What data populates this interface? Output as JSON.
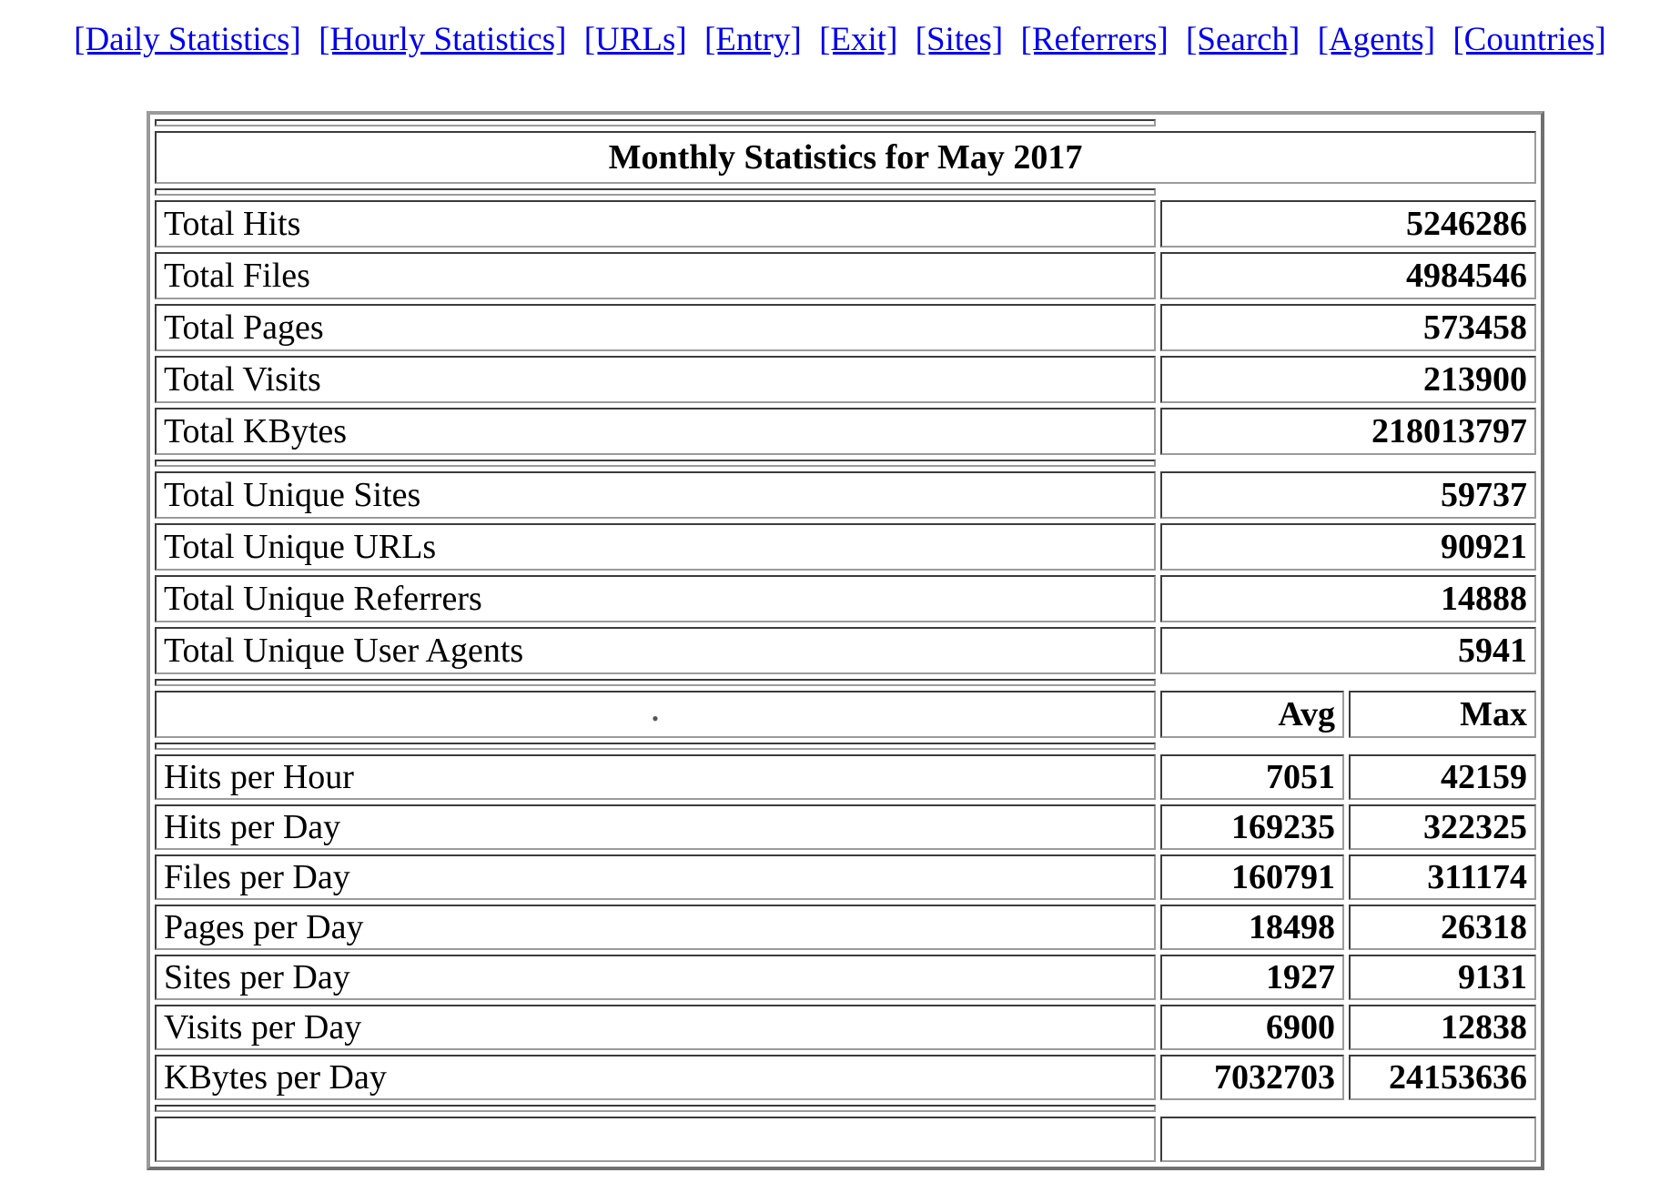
{
  "nav": {
    "links": [
      "[Daily Statistics]",
      "[Hourly Statistics]",
      "[URLs]",
      "[Entry]",
      "[Exit]",
      "[Sites]",
      "[Referrers]",
      "[Search]",
      "[Agents]",
      "[Countries]"
    ]
  },
  "table": {
    "title": "Monthly Statistics for May 2017",
    "summary_rows": [
      {
        "label": "Total Hits",
        "value": "5246286"
      },
      {
        "label": "Total Files",
        "value": "4984546"
      },
      {
        "label": "Total Pages",
        "value": "573458"
      },
      {
        "label": "Total Visits",
        "value": "213900"
      },
      {
        "label": "Total KBytes",
        "value": "218013797"
      }
    ],
    "unique_rows": [
      {
        "label": "Total Unique Sites",
        "value": "59737"
      },
      {
        "label": "Total Unique URLs",
        "value": "90921"
      },
      {
        "label": "Total Unique Referrers",
        "value": "14888"
      },
      {
        "label": "Total Unique User Agents",
        "value": "5941"
      }
    ],
    "header": {
      "spacer_dot": "•",
      "avg": "Avg",
      "max": "Max"
    },
    "rate_rows": [
      {
        "label": "Hits per Hour",
        "avg": "7051",
        "max": "42159"
      },
      {
        "label": "Hits per Day",
        "avg": "169235",
        "max": "322325"
      },
      {
        "label": "Files per Day",
        "avg": "160791",
        "max": "311174"
      },
      {
        "label": "Pages per Day",
        "avg": "18498",
        "max": "26318"
      },
      {
        "label": "Sites per Day",
        "avg": "1927",
        "max": "9131"
      },
      {
        "label": "Visits per Day",
        "avg": "6900",
        "max": "12838"
      },
      {
        "label": "KBytes per Day",
        "avg": "7032703",
        "max": "24153636"
      }
    ]
  },
  "colors": {
    "link_blue": "#0000ee",
    "cell_border_dark": "#3b3b3b",
    "cell_border_light": "#9b9b9b",
    "table_outer_border": "#9a9a9a",
    "dot_gray": "#555555"
  }
}
